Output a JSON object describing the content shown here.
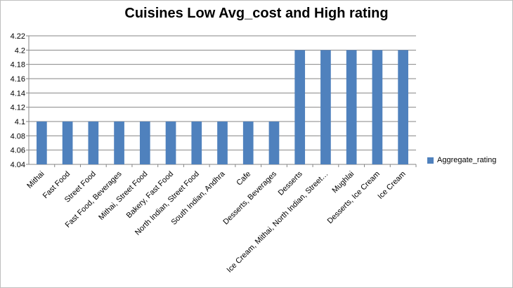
{
  "chart_data": {
    "type": "bar",
    "title": "Cuisines  Low Avg_cost and High rating",
    "xlabel": "",
    "ylabel": "",
    "categories": [
      "Mithai",
      "Fast Food",
      "Street Food",
      "Fast Food, Beverages",
      "Mithai, Street Food",
      "Bakery, Fast Food",
      "North Indian, Street Food",
      "South Indian, Andhra",
      "Cafe",
      "Desserts, Beverages",
      "Desserts",
      "Ice Cream, Mithai, North Indian, Street…",
      "Mughlai",
      "Desserts, Ice Cream",
      "Ice Cream"
    ],
    "series": [
      {
        "name": "Aggregate_rating",
        "color": "#4f81bd",
        "values": [
          4.1,
          4.1,
          4.1,
          4.1,
          4.1,
          4.1,
          4.1,
          4.1,
          4.1,
          4.1,
          4.2,
          4.2,
          4.2,
          4.2,
          4.2
        ]
      }
    ],
    "ylim": [
      4.04,
      4.22
    ],
    "yticks": [
      "4.04",
      "4.06",
      "4.08",
      "4.1",
      "4.12",
      "4.14",
      "4.16",
      "4.18",
      "4.2",
      "4.22"
    ],
    "grid": true,
    "legend_position": "right"
  }
}
